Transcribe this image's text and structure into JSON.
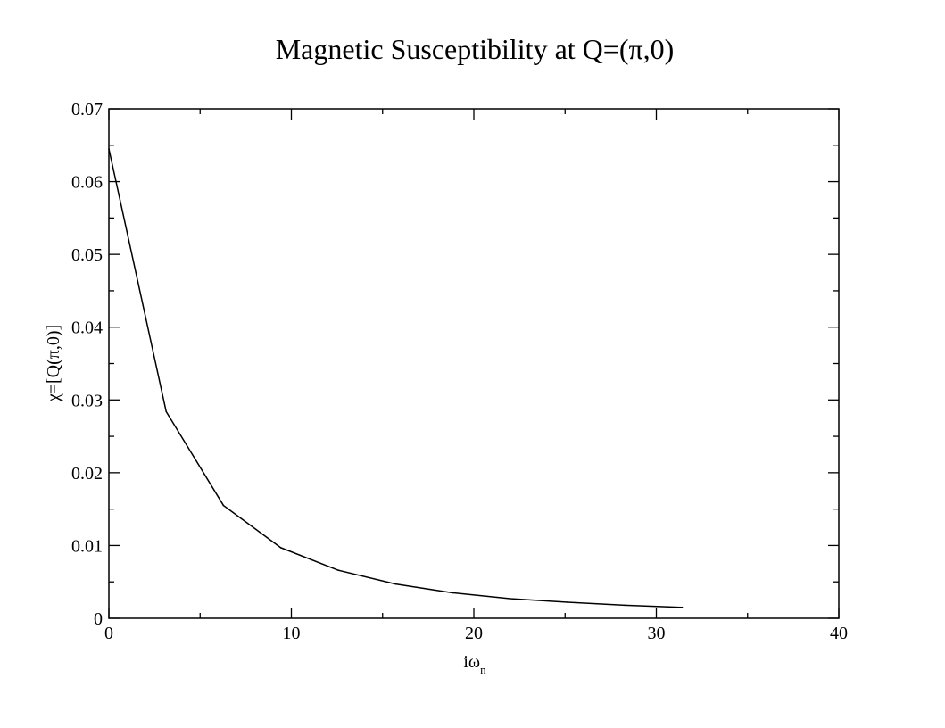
{
  "chart_data": {
    "type": "line",
    "title": "Magnetic Susceptibility at Q=(π,0)",
    "xlabel": {
      "base": "iω",
      "sub": "n"
    },
    "ylabel": "χ=[Q(π,0)]",
    "xlim": [
      0,
      40
    ],
    "ylim": [
      0,
      0.07
    ],
    "x_ticks": [
      {
        "value": 0,
        "label": "0"
      },
      {
        "value": 10,
        "label": "10"
      },
      {
        "value": 20,
        "label": "20"
      },
      {
        "value": 30,
        "label": "30"
      },
      {
        "value": 40,
        "label": "40"
      }
    ],
    "y_ticks": [
      {
        "value": 0,
        "label": "0"
      },
      {
        "value": 0.01,
        "label": "0.01"
      },
      {
        "value": 0.02,
        "label": "0.02"
      },
      {
        "value": 0.03,
        "label": "0.03"
      },
      {
        "value": 0.04,
        "label": "0.04"
      },
      {
        "value": 0.05,
        "label": "0.05"
      },
      {
        "value": 0.06,
        "label": "0.06"
      },
      {
        "value": 0.07,
        "label": "0.07"
      }
    ],
    "x_minor_step": 5,
    "y_minor_step": 0.005,
    "grid": false,
    "legend": "none",
    "series": [
      {
        "x": [
          0,
          3.14,
          6.28,
          9.42,
          12.57,
          15.71,
          18.85,
          21.99,
          25.13,
          28.27,
          31.42
        ],
        "y": [
          0.0645,
          0.0284,
          0.0155,
          0.0097,
          0.0066,
          0.0047,
          0.0035,
          0.0027,
          0.0022,
          0.0018,
          0.0015
        ],
        "color": "#000000"
      }
    ]
  }
}
